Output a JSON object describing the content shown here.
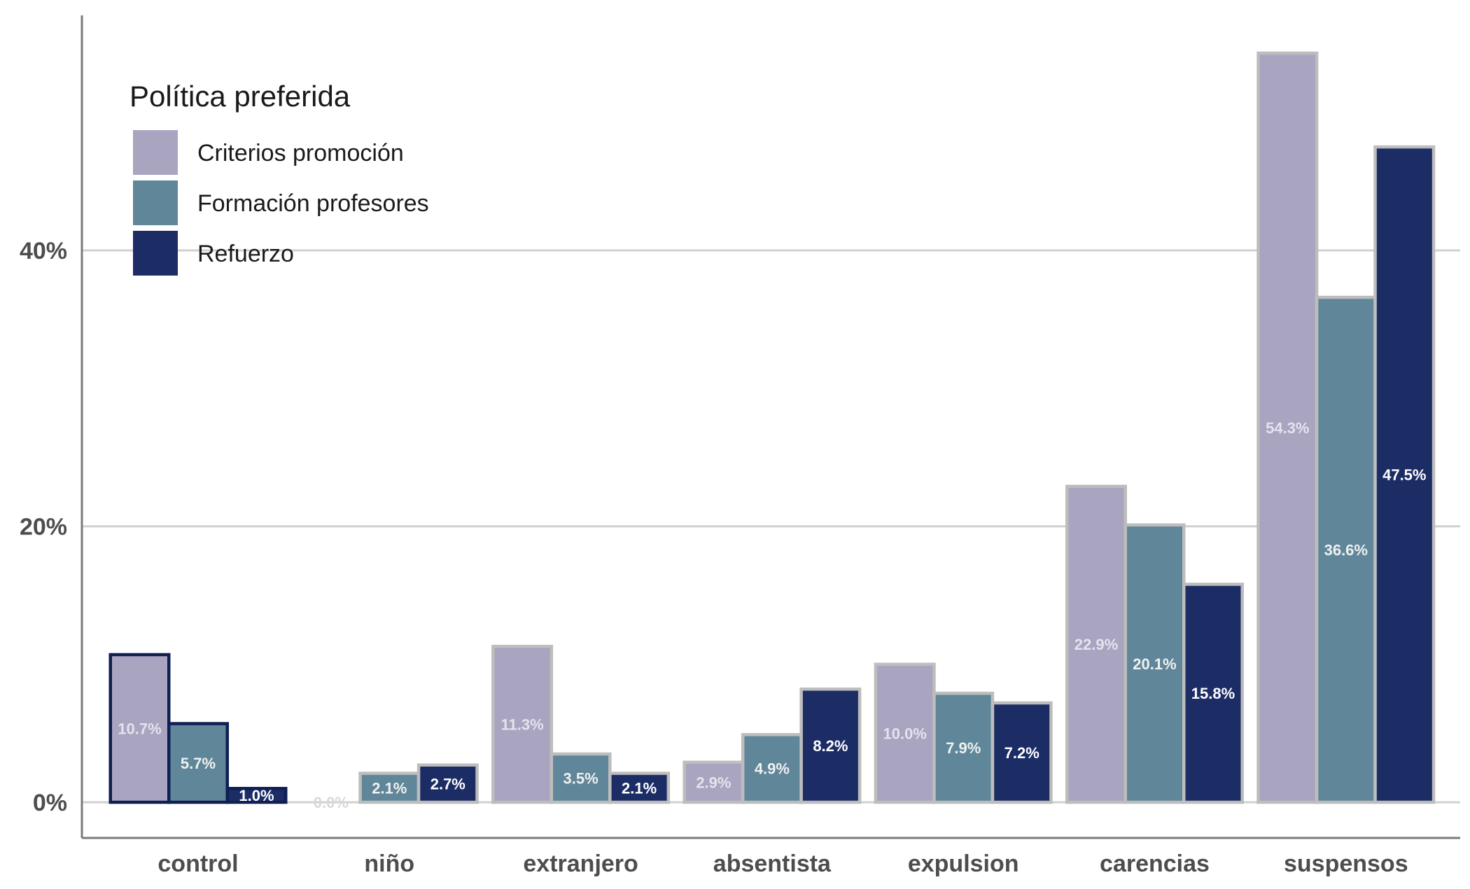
{
  "chart_data": {
    "type": "bar",
    "title": "",
    "xlabel": "",
    "ylabel": "",
    "ylim": [
      0,
      54.3
    ],
    "y_ticks": [
      "0%",
      "20%",
      "40%"
    ],
    "y_tick_values": [
      0,
      20,
      40
    ],
    "grid": "horizontal major gridlines",
    "legend_placement": "top-left",
    "legend_title": "Política preferida",
    "categories": [
      "control",
      "niño",
      "extranjero",
      "absentista",
      "expulsion",
      "carencias",
      "suspensos"
    ],
    "highlighted_category": "control",
    "series": [
      {
        "name": "Criterios promoción",
        "color": "#a9a4c0",
        "label_color": "#e6e2ee",
        "values": [
          10.7,
          0.0,
          11.3,
          2.9,
          10.0,
          22.9,
          54.3
        ],
        "labels": [
          "10.7%",
          "0.0%",
          "11.3%",
          "2.9%",
          "10.0%",
          "22.9%",
          "54.3%"
        ]
      },
      {
        "name": "Formación profesores",
        "color": "#5f8799",
        "label_color": "#f0f0f0",
        "values": [
          5.7,
          2.1,
          3.5,
          4.9,
          7.9,
          20.1,
          36.6
        ],
        "labels": [
          "5.7%",
          "2.1%",
          "3.5%",
          "4.9%",
          "7.9%",
          "20.1%",
          "36.6%"
        ]
      },
      {
        "name": "Refuerzo",
        "color": "#1c2d66",
        "label_color": "#ffffff",
        "values": [
          1.0,
          2.7,
          2.1,
          8.2,
          7.2,
          15.8,
          47.5
        ],
        "labels": [
          "1.0%",
          "2.7%",
          "2.1%",
          "8.2%",
          "7.2%",
          "15.8%",
          "47.5%"
        ]
      }
    ]
  }
}
